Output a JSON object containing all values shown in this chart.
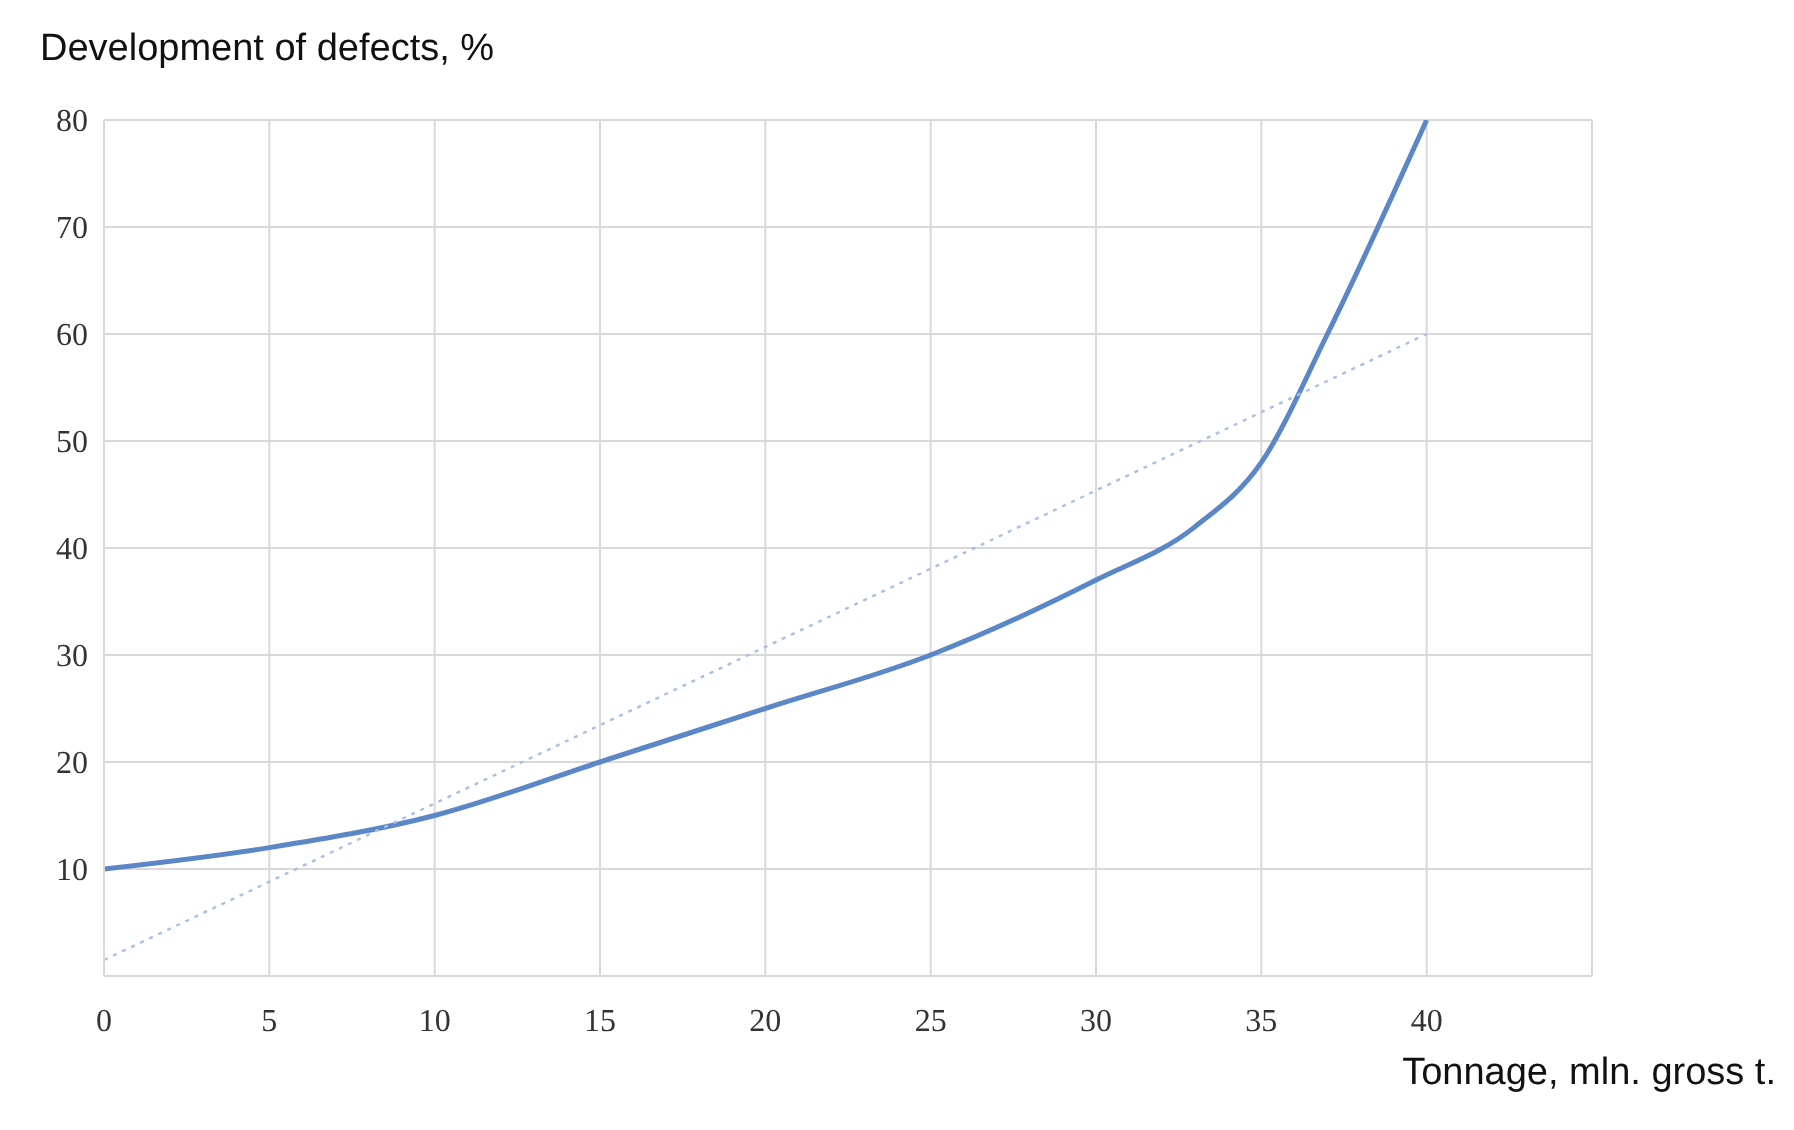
{
  "chart_data": {
    "type": "line",
    "xlabel": "Tonnage, mln. gross t.",
    "ylabel": "Development of defects, %",
    "xlim": [
      0,
      45
    ],
    "xticks": [
      0,
      5,
      10,
      15,
      20,
      25,
      30,
      35,
      40,
      {
        "value": 45,
        "label": null
      }
    ],
    "ylim": [
      0,
      80
    ],
    "yticks": [
      {
        "value": 0,
        "label": null
      },
      10,
      20,
      30,
      40,
      50,
      60,
      70,
      80
    ],
    "grid": true,
    "marker": "none",
    "series": [
      {
        "color": "#5b87c7",
        "line_style": "solid",
        "x": [
          0,
          5,
          10,
          15,
          20,
          25,
          30,
          33,
          35,
          37,
          40
        ],
        "values": [
          10,
          12,
          15,
          20,
          25,
          30,
          37,
          42,
          48,
          60,
          80
        ]
      },
      {
        "type": "line",
        "color": "#a9bfe3",
        "line_style": "dotted",
        "x": [
          0,
          40
        ],
        "values": [
          1.5,
          60
        ]
      }
    ]
  }
}
